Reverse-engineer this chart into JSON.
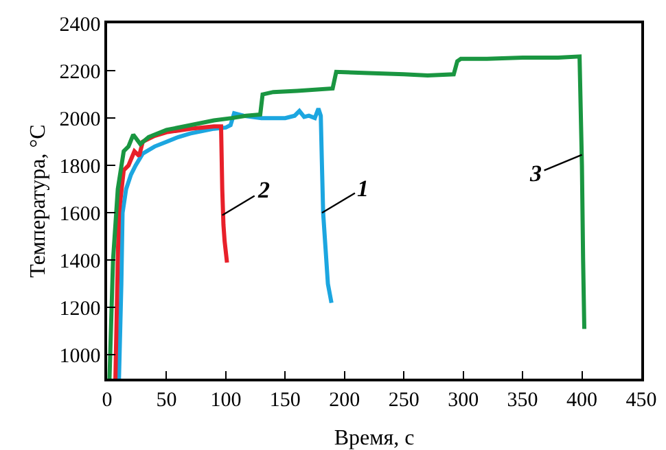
{
  "chart_data": {
    "type": "line",
    "xlabel": "Время, с",
    "ylabel": "Температура, °C",
    "xlim": [
      0,
      450
    ],
    "ylim": [
      900,
      2400
    ],
    "xticks": [
      0,
      50,
      100,
      150,
      200,
      250,
      300,
      350,
      400,
      450
    ],
    "yticks": [
      1000,
      1200,
      1400,
      1600,
      1800,
      2000,
      2200,
      2400
    ],
    "grid": false,
    "marker": "none",
    "line_style": "solid",
    "series": [
      {
        "color": "#1ca6e0",
        "x": [
          10,
          12,
          13,
          16,
          20,
          24,
          30,
          40,
          50,
          60,
          70,
          80,
          90,
          100,
          104,
          107,
          115,
          130,
          150,
          158,
          162,
          166,
          170,
          175,
          178,
          180,
          181,
          182,
          184,
          186,
          189
        ],
        "values": [
          900,
          1300,
          1600,
          1700,
          1760,
          1800,
          1850,
          1880,
          1900,
          1920,
          1935,
          1945,
          1955,
          1960,
          1970,
          2020,
          2010,
          2000,
          2000,
          2010,
          2030,
          2005,
          2010,
          2000,
          2040,
          2010,
          1800,
          1600,
          1450,
          1300,
          1220
        ]
      },
      {
        "color": "#e8202a",
        "x": [
          7,
          9,
          10,
          14,
          18,
          23,
          27,
          30,
          40,
          50,
          70,
          90,
          96,
          97,
          98,
          99,
          101
        ],
        "values": [
          900,
          1400,
          1600,
          1780,
          1800,
          1860,
          1840,
          1900,
          1925,
          1940,
          1955,
          1965,
          1965,
          1700,
          1550,
          1480,
          1390
        ]
      },
      {
        "color": "#1a9641",
        "x": [
          2,
          5,
          9,
          14,
          18,
          22,
          28,
          35,
          50,
          70,
          90,
          105,
          117,
          129,
          131,
          140,
          160,
          190,
          193,
          220,
          250,
          270,
          292,
          295,
          298,
          320,
          350,
          380,
          398,
          400,
          401,
          402
        ],
        "values": [
          900,
          1400,
          1700,
          1860,
          1880,
          1930,
          1890,
          1920,
          1950,
          1970,
          1990,
          2000,
          2010,
          2015,
          2100,
          2110,
          2115,
          2125,
          2195,
          2190,
          2185,
          2180,
          2185,
          2240,
          2250,
          2250,
          2255,
          2255,
          2260,
          1800,
          1400,
          1110
        ]
      }
    ],
    "annotations": [
      {
        "text": "2",
        "x": 97,
        "y": 1590
      },
      {
        "text": "1",
        "x": 181,
        "y": 1600
      },
      {
        "text": "3",
        "x": 400,
        "y": 1845
      }
    ]
  }
}
